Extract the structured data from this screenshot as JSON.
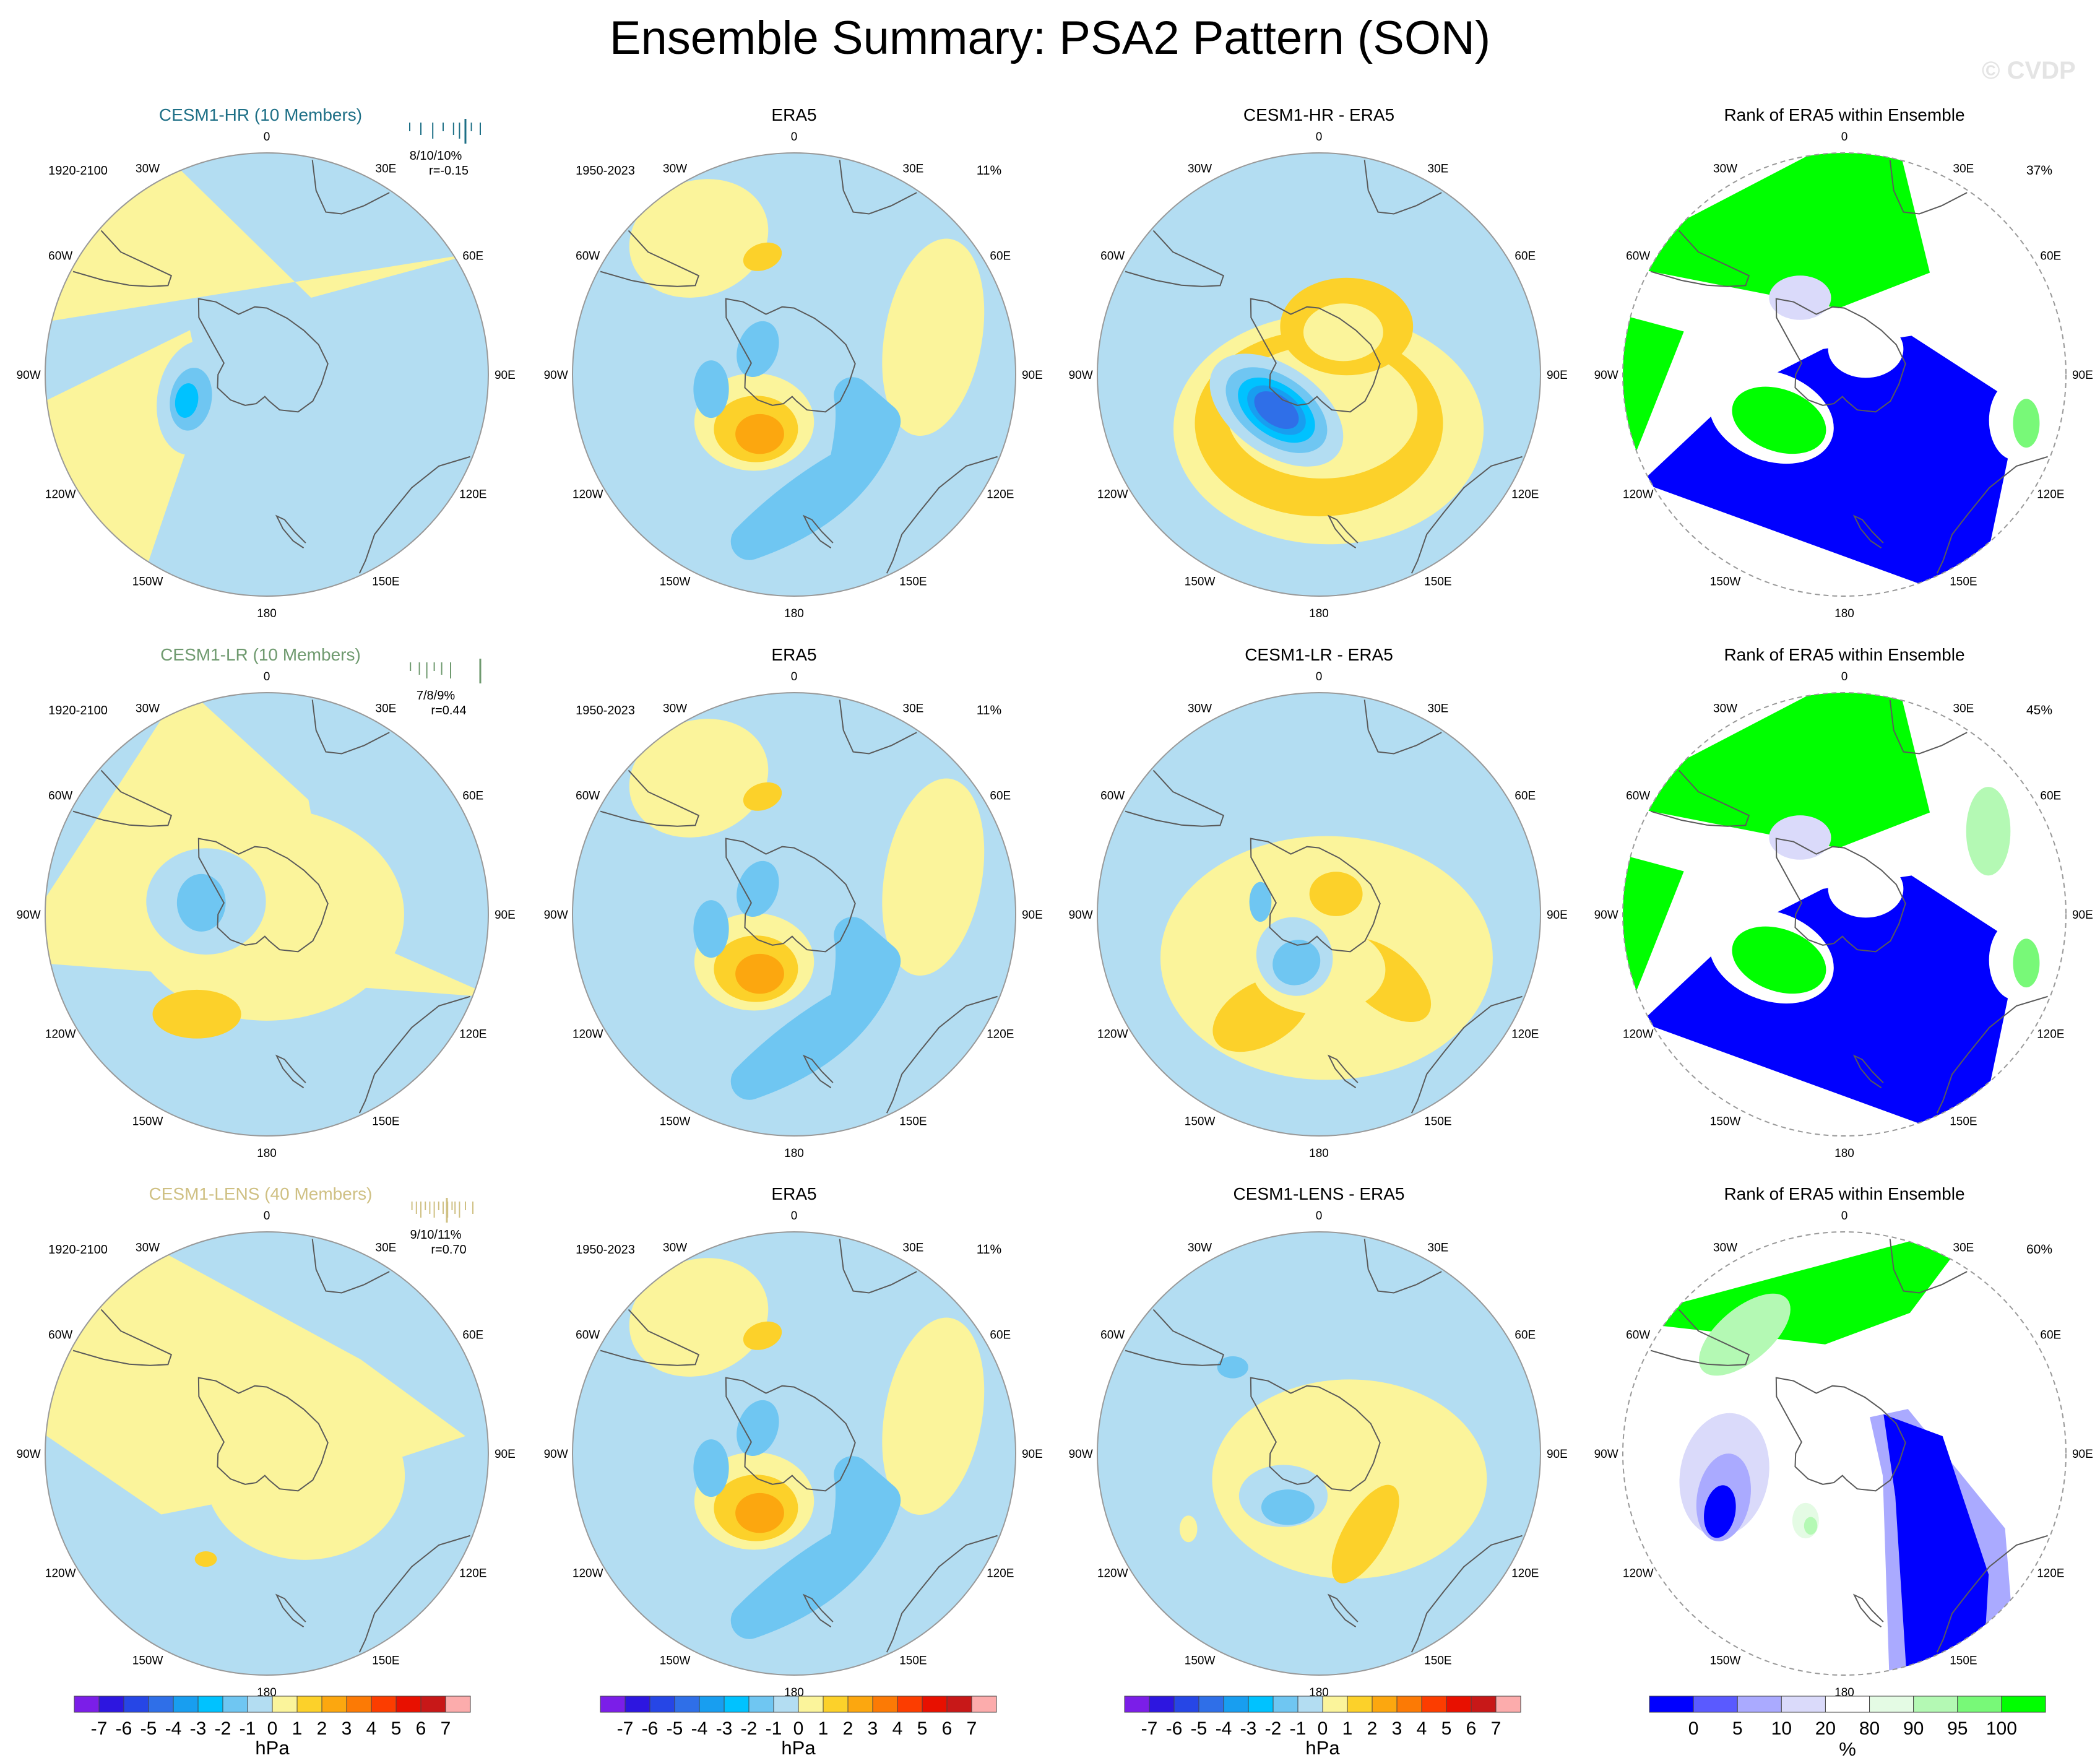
{
  "title": "Ensemble Summary: PSA2 Pattern (SON)",
  "watermark": "© CVDP",
  "colors": {
    "coast": "#5a5a5a",
    "rim": "#999999",
    "cesm1_hr": "#1d6f86",
    "cesm1_lr": "#6f9a6f",
    "cesm1_lens": "#cfc083"
  },
  "hpa_colorbar": {
    "colors": [
      "#7b1ee8",
      "#2d16e0",
      "#2646e6",
      "#2f6fe8",
      "#189ef0",
      "#00c2ff",
      "#6fc6f2",
      "#b3ddf2",
      "#fbf49b",
      "#fcd12a",
      "#fca70f",
      "#fc7a05",
      "#fc3d00",
      "#e81000",
      "#c81818",
      "#fcacac"
    ],
    "labels": [
      "-7",
      "-6",
      "-5",
      "-4",
      "-3",
      "-2",
      "-1",
      "0",
      "1",
      "2",
      "3",
      "4",
      "5",
      "6",
      "7"
    ],
    "unit": "hPa"
  },
  "rank_colorbar": {
    "colors": [
      "#0000ff",
      "#5a5aff",
      "#aaaaff",
      "#dadafa",
      "#ffffff",
      "#e4fbe4",
      "#b4f9b4",
      "#78f978",
      "#00ff00"
    ],
    "labels": [
      "0",
      "5",
      "10",
      "20",
      "80",
      "90",
      "95",
      "100"
    ],
    "unit": "%"
  },
  "map_labels": {
    "lon_top": "0",
    "lon_bottom": "180",
    "lon_30w": "30W",
    "lon_30e": "30E",
    "lon_60w": "60W",
    "lon_60e": "60E",
    "lon_90w": "90W",
    "lon_90e": "90E",
    "lon_120w": "120W",
    "lon_120e": "120E",
    "lon_150w": "150W",
    "lon_150e": "150E"
  },
  "rows": [
    {
      "model": {
        "title": "CESM1-HR (10 Members)",
        "period": "1920-2100",
        "stats": "8/10/10%",
        "corr": "r=-0.15",
        "ticks": [
          0.05,
          0.2,
          0.36,
          0.5,
          0.64,
          0.72,
          0.88,
          1.0
        ],
        "mean": 0.8,
        "color_key": "cesm1_hr"
      },
      "obs": {
        "title": "ERA5",
        "period": "1950-2023",
        "pct": "11%"
      },
      "diff": {
        "title": "CESM1-HR - ERA5"
      },
      "rank": {
        "title": "Rank of ERA5 within Ensemble",
        "pct": "37%"
      }
    },
    {
      "model": {
        "title": "CESM1-LR (10 Members)",
        "period": "1920-2100",
        "stats": "7/8/9%",
        "corr": "r=0.44",
        "ticks": [
          0.06,
          0.18,
          0.28,
          0.38,
          0.48,
          0.6
        ],
        "mean": 1.0,
        "color_key": "cesm1_lr"
      },
      "obs": {
        "title": "ERA5",
        "period": "1950-2023",
        "pct": "11%"
      },
      "diff": {
        "title": "CESM1-LR - ERA5"
      },
      "rank": {
        "title": "Rank of ERA5 within Ensemble",
        "pct": "45%"
      }
    },
    {
      "model": {
        "title": "CESM1-LENS (40 Members)",
        "period": "1920-2100",
        "stats": "9/10/11%",
        "corr": "r=0.70",
        "ticks": [
          0.08,
          0.14,
          0.2,
          0.26,
          0.32,
          0.38,
          0.44,
          0.5,
          0.56,
          0.62,
          0.66,
          0.72,
          0.8,
          0.9
        ],
        "mean": 0.55,
        "color_key": "cesm1_lens"
      },
      "obs": {
        "title": "ERA5",
        "period": "1950-2023",
        "pct": "11%"
      },
      "diff": {
        "title": "CESM1-LENS - ERA5"
      },
      "rank": {
        "title": "Rank of ERA5 within Ensemble",
        "pct": "60%"
      }
    }
  ],
  "chart_data": [
    {
      "type": "heatmap",
      "title": "CESM1-HR (10 Members)",
      "field": "PSA2 pattern SLP regression (hPa)",
      "centers": [
        {
          "lon_deg": -108,
          "colat": 0.32,
          "value": -2.2
        }
      ]
    },
    {
      "type": "heatmap",
      "title": "ERA5",
      "field": "PSA2 pattern SLP regression (hPa)",
      "centers": [
        {
          "lon_deg": -150,
          "colat": 0.28,
          "value": 3.0
        },
        {
          "lon_deg": 150,
          "colat": 0.55,
          "value": -1.3
        },
        {
          "lon_deg": 20,
          "colat": 0.55,
          "value": 1.0
        }
      ]
    },
    {
      "type": "heatmap",
      "title": "CESM1-HR - ERA5",
      "field": "difference (hPa)",
      "centers": [
        {
          "lon_deg": -130,
          "colat": 0.2,
          "value": -3.5
        },
        {
          "lon_deg": -180,
          "colat": 0.6,
          "value": 1.5
        }
      ]
    },
    {
      "type": "heatmap",
      "title": "Rank of ERA5 within Ensemble",
      "field": "rank (%)",
      "summary_pct": 37
    },
    {
      "type": "heatmap",
      "title": "CESM1-LR (10 Members)",
      "field": "PSA2 pattern SLP regression (hPa)",
      "centers": [
        {
          "lon_deg": -80,
          "colat": 0.25,
          "value": -1.3
        },
        {
          "lon_deg": -145,
          "colat": 0.5,
          "value": 1.2
        }
      ]
    },
    {
      "type": "heatmap",
      "title": "ERA5",
      "field": "PSA2 pattern SLP regression (hPa)",
      "centers": [
        {
          "lon_deg": -150,
          "colat": 0.28,
          "value": 3.0
        },
        {
          "lon_deg": 150,
          "colat": 0.55,
          "value": -1.3
        }
      ]
    },
    {
      "type": "heatmap",
      "title": "CESM1-LR - ERA5",
      "field": "difference (hPa)",
      "centers": [
        {
          "lon_deg": -170,
          "colat": 0.3,
          "value": -1.3
        },
        {
          "lon_deg": -150,
          "colat": 0.55,
          "value": 1.4
        }
      ]
    },
    {
      "type": "heatmap",
      "title": "Rank of ERA5 within Ensemble",
      "field": "rank (%)",
      "summary_pct": 45
    },
    {
      "type": "heatmap",
      "title": "CESM1-LENS (40 Members)",
      "field": "PSA2 pattern SLP regression (hPa)",
      "centers": [
        {
          "lon_deg": -150,
          "colat": 0.5,
          "value": 1.2
        }
      ]
    },
    {
      "type": "heatmap",
      "title": "ERA5",
      "field": "PSA2 pattern SLP regression (hPa)",
      "centers": [
        {
          "lon_deg": -150,
          "colat": 0.28,
          "value": 3.0
        },
        {
          "lon_deg": 150,
          "colat": 0.55,
          "value": -1.3
        }
      ]
    },
    {
      "type": "heatmap",
      "title": "CESM1-LENS - ERA5",
      "field": "difference (hPa)",
      "centers": [
        {
          "lon_deg": -170,
          "colat": 0.3,
          "value": -1.3
        },
        {
          "lon_deg": 150,
          "colat": 0.45,
          "value": 1.5
        }
      ]
    },
    {
      "type": "heatmap",
      "title": "Rank of ERA5 within Ensemble",
      "field": "rank (%)",
      "summary_pct": 60
    }
  ]
}
